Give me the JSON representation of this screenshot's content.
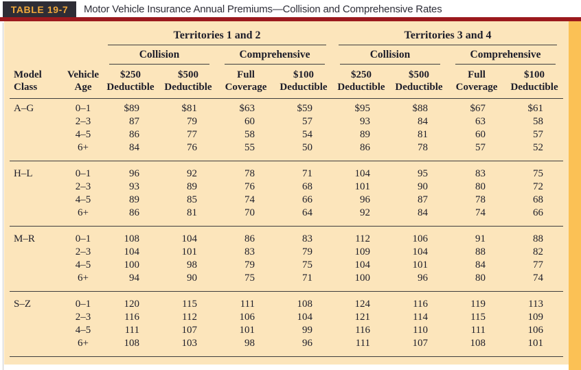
{
  "page": {
    "badge": "TABLE 19-7",
    "title": "Motor Vehicle Insurance Annual Premiums—Collision and Comprehensive Rates"
  },
  "colors": {
    "badge_bg": "#2E2D35",
    "badge_text": "#F2A93B",
    "title_rule_maroon": "#9B191D",
    "panel_bg": "#FCE5BB",
    "accent_strip": "#FBC155",
    "table_text": "#1D1D29",
    "rule_lines": "#3C3C3C"
  },
  "table": {
    "territories": [
      "Territories 1 and 2",
      "Territories 3 and 4"
    ],
    "coverages": [
      "Collision",
      "Comprehensive",
      "Collision",
      "Comprehensive"
    ],
    "columns": [
      {
        "key": "model-class",
        "line1": "Model",
        "line2": "Class"
      },
      {
        "key": "vehicle-age",
        "line1": "Vehicle",
        "line2": "Age"
      },
      {
        "key": "t12-collision-250-deductible",
        "line1": "$250",
        "line2": "Deductible"
      },
      {
        "key": "t12-collision-500-deductible",
        "line1": "$500",
        "line2": "Deductible"
      },
      {
        "key": "t12-comprehensive-full-coverage",
        "line1": "Full",
        "line2": "Coverage"
      },
      {
        "key": "t12-comprehensive-100-deductible",
        "line1": "$100",
        "line2": "Deductible"
      },
      {
        "key": "t34-collision-250-deductible",
        "line1": "$250",
        "line2": "Deductible"
      },
      {
        "key": "t34-collision-500-deductible",
        "line1": "$500",
        "line2": "Deductible"
      },
      {
        "key": "t34-comprehensive-full-coverage",
        "line1": "Full",
        "line2": "Coverage"
      },
      {
        "key": "t34-comprehensive-100-deductible",
        "line1": "$100",
        "line2": "Deductible"
      }
    ],
    "groups": [
      {
        "model_class": "A–G",
        "rows": [
          {
            "age": "0–1",
            "values": [
              "$89",
              "$81",
              "$63",
              "$59",
              "$95",
              "$88",
              "$67",
              "$61"
            ]
          },
          {
            "age": "2–3",
            "values": [
              "87",
              "79",
              "60",
              "57",
              "93",
              "84",
              "63",
              "58"
            ]
          },
          {
            "age": "4–5",
            "values": [
              "86",
              "77",
              "58",
              "54",
              "89",
              "81",
              "60",
              "57"
            ]
          },
          {
            "age": "6+",
            "values": [
              "84",
              "76",
              "55",
              "50",
              "86",
              "78",
              "57",
              "52"
            ]
          }
        ]
      },
      {
        "model_class": "H–L",
        "rows": [
          {
            "age": "0–1",
            "values": [
              "96",
              "92",
              "78",
              "71",
              "104",
              "95",
              "83",
              "75"
            ]
          },
          {
            "age": "2–3",
            "values": [
              "93",
              "89",
              "76",
              "68",
              "101",
              "90",
              "80",
              "72"
            ]
          },
          {
            "age": "4–5",
            "values": [
              "89",
              "85",
              "74",
              "66",
              "96",
              "87",
              "78",
              "68"
            ]
          },
          {
            "age": "6+",
            "values": [
              "86",
              "81",
              "70",
              "64",
              "92",
              "84",
              "74",
              "66"
            ]
          }
        ]
      },
      {
        "model_class": "M–R",
        "rows": [
          {
            "age": "0–1",
            "values": [
              "108",
              "104",
              "86",
              "83",
              "112",
              "106",
              "91",
              "88"
            ]
          },
          {
            "age": "2–3",
            "values": [
              "104",
              "101",
              "83",
              "79",
              "109",
              "104",
              "88",
              "82"
            ]
          },
          {
            "age": "4–5",
            "values": [
              "100",
              "98",
              "79",
              "75",
              "104",
              "101",
              "84",
              "77"
            ]
          },
          {
            "age": "6+",
            "values": [
              "94",
              "90",
              "75",
              "71",
              "100",
              "96",
              "80",
              "74"
            ]
          }
        ]
      },
      {
        "model_class": "S–Z",
        "rows": [
          {
            "age": "0–1",
            "values": [
              "120",
              "115",
              "111",
              "108",
              "124",
              "116",
              "119",
              "113"
            ]
          },
          {
            "age": "2–3",
            "values": [
              "116",
              "112",
              "106",
              "104",
              "121",
              "114",
              "115",
              "109"
            ]
          },
          {
            "age": "4–5",
            "values": [
              "111",
              "107",
              "101",
              "99",
              "116",
              "110",
              "111",
              "106"
            ]
          },
          {
            "age": "6+",
            "values": [
              "108",
              "103",
              "98",
              "96",
              "111",
              "107",
              "108",
              "101"
            ]
          }
        ]
      }
    ]
  }
}
